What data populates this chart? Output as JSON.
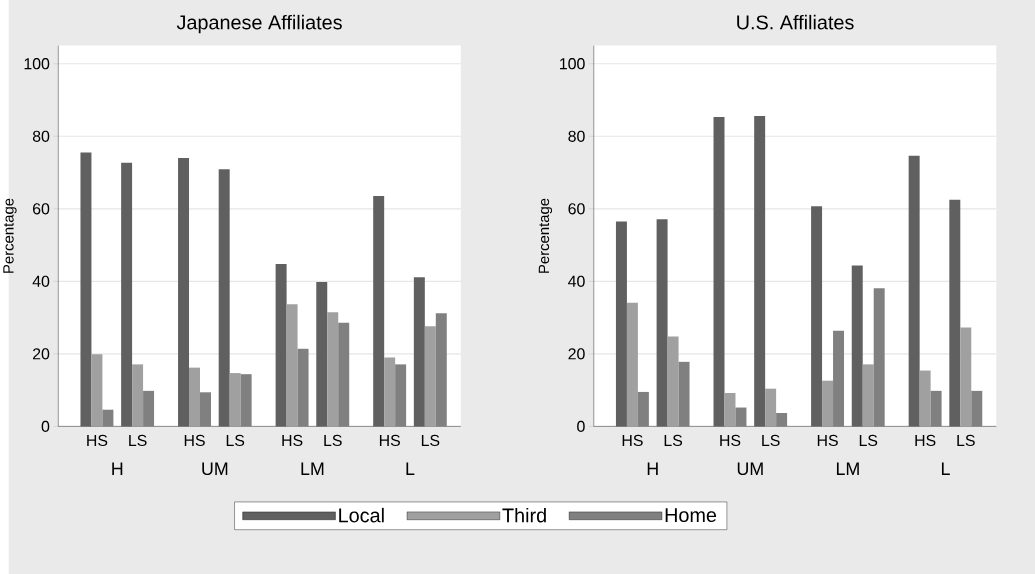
{
  "chart_data": [
    {
      "type": "bar",
      "title": "Japanese Affiliates",
      "ylabel": "Percentage",
      "categories": [
        "HS",
        "LS",
        "HS",
        "LS",
        "HS",
        "LS",
        "HS",
        "LS"
      ],
      "annotations": [
        "H",
        "UM",
        "LM",
        "L"
      ],
      "series": [
        {
          "name": "Local",
          "color": "#606060",
          "values": [
            75.5,
            72.7,
            74.0,
            70.9,
            44.8,
            39.8,
            63.5,
            41.1
          ]
        },
        {
          "name": "Third",
          "color": "#a0a0a0",
          "values": [
            19.9,
            17.1,
            16.2,
            14.7,
            33.7,
            31.5,
            19.0,
            27.6
          ]
        },
        {
          "name": "Home",
          "color": "#808080",
          "values": [
            4.6,
            9.8,
            9.4,
            14.4,
            21.4,
            28.6,
            17.1,
            31.2
          ]
        }
      ],
      "ylim": [
        0,
        105
      ],
      "yticks": [
        0,
        20,
        40,
        60,
        80,
        100
      ],
      "grid": "y",
      "legend": "bottom"
    },
    {
      "type": "bar",
      "title": "U.S. Affiliates",
      "ylabel": "Percentage",
      "categories": [
        "HS",
        "LS",
        "HS",
        "LS",
        "HS",
        "LS",
        "HS",
        "LS"
      ],
      "annotations": [
        "H",
        "UM",
        "LM",
        "L"
      ],
      "series": [
        {
          "color": "#606060",
          "values": [
            56.5,
            57.1,
            85.3,
            85.6,
            60.7,
            44.4,
            74.6,
            62.5
          ]
        },
        {
          "color": "#a0a0a0",
          "values": [
            34.1,
            24.8,
            9.2,
            10.4,
            12.6,
            17.1,
            15.4,
            27.3
          ]
        },
        {
          "color": "#808080",
          "values": [
            9.5,
            17.8,
            5.2,
            3.7,
            26.4,
            38.1,
            9.8,
            9.8
          ]
        }
      ],
      "ylim": [
        0,
        105
      ],
      "yticks": [
        0,
        20,
        40,
        60,
        80,
        100
      ],
      "grid": "y"
    }
  ]
}
